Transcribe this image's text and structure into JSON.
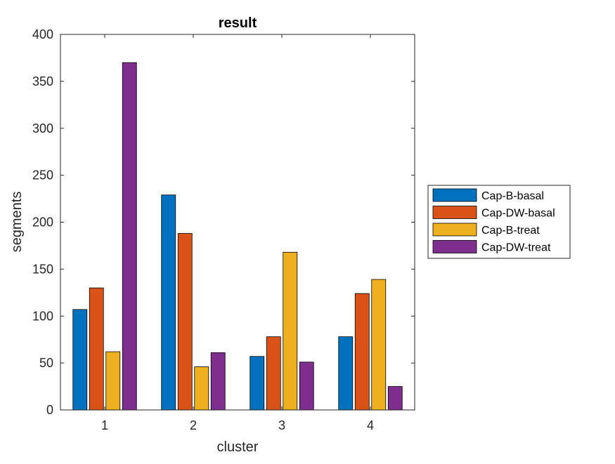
{
  "chart_data": {
    "type": "bar",
    "title": "result",
    "xlabel": "cluster",
    "ylabel": "segments",
    "categories": [
      "1",
      "2",
      "3",
      "4"
    ],
    "ylim": [
      0,
      400
    ],
    "yticks": [
      0,
      50,
      100,
      150,
      200,
      250,
      300,
      350,
      400
    ],
    "grid": false,
    "legend_position": "outside-right",
    "series": [
      {
        "name": "Cap-B-basal",
        "color": "#0072BD",
        "values": [
          107,
          229,
          57,
          78
        ]
      },
      {
        "name": "Cap-DW-basal",
        "color": "#D95319",
        "values": [
          130,
          188,
          78,
          124
        ]
      },
      {
        "name": "Cap-B-treat",
        "color": "#EDB120",
        "values": [
          62,
          46,
          168,
          139
        ]
      },
      {
        "name": "Cap-DW-treat",
        "color": "#7E2F8E",
        "values": [
          370,
          61,
          51,
          25
        ]
      }
    ]
  }
}
